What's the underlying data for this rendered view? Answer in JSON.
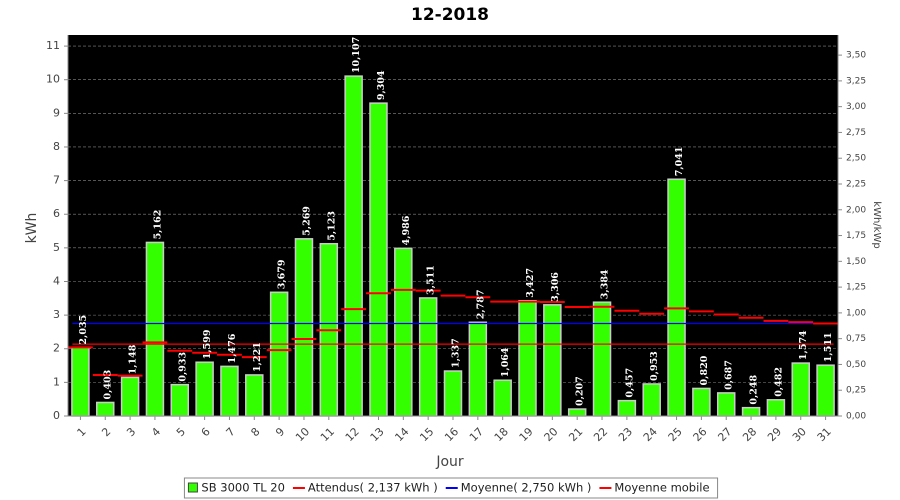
{
  "chart_data": {
    "type": "bar",
    "title": "12-2018",
    "x_label": "Jour",
    "y_label": "kWh",
    "y2_label": "kWh/kWp",
    "categories": [
      "1",
      "2",
      "3",
      "4",
      "5",
      "6",
      "7",
      "8",
      "9",
      "10",
      "11",
      "12",
      "13",
      "14",
      "15",
      "16",
      "17",
      "18",
      "19",
      "20",
      "21",
      "22",
      "23",
      "24",
      "25",
      "26",
      "27",
      "28",
      "29",
      "30",
      "31"
    ],
    "series": [
      {
        "name": "SB 3000 TL 20",
        "color": "#33ff00",
        "values": [
          2.035,
          0.403,
          1.148,
          5.162,
          0.933,
          1.599,
          1.476,
          1.221,
          3.679,
          5.269,
          5.123,
          10.107,
          9.304,
          4.986,
          3.511,
          1.337,
          2.787,
          1.064,
          3.427,
          3.306,
          0.207,
          3.384,
          0.457,
          0.953,
          7.041,
          0.82,
          0.687,
          0.248,
          0.482,
          1.574,
          1.511
        ],
        "value_labels": [
          "2,035",
          "0,403",
          "1,148",
          "5,162",
          "0,933",
          "1,599",
          "1,476",
          "1,221",
          "3,679",
          "5,269",
          "5,123",
          "10,107",
          "9,304",
          "4,986",
          "3,511",
          "1,337",
          "2,787",
          "1,064",
          "3,427",
          "3,306",
          "0,207",
          "3,384",
          "0,457",
          "0,953",
          "7,041",
          "0,820",
          "0,687",
          "0,248",
          "0,482",
          "1,574",
          "1,511"
        ]
      },
      {
        "name": "Moyenne mobile",
        "color": "#ff0000",
        "values": [
          2.04,
          1.22,
          1.2,
          2.19,
          1.94,
          1.88,
          1.82,
          1.75,
          1.96,
          2.29,
          2.55,
          3.18,
          3.65,
          3.75,
          3.73,
          3.58,
          3.53,
          3.4,
          3.4,
          3.39,
          3.24,
          3.25,
          3.13,
          3.04,
          3.2,
          3.11,
          3.02,
          2.92,
          2.83,
          2.79,
          2.75
        ]
      }
    ],
    "reference_lines": [
      {
        "name": "Attendus( 2,137 kWh )",
        "color": "#ff0000",
        "value": 2.137
      },
      {
        "name": "Moyenne( 2,750 kWh )",
        "color": "#0000ff",
        "value": 2.75
      }
    ],
    "ylim": [
      0,
      11.33
    ],
    "yticks": [
      0,
      1,
      2,
      3,
      4,
      5,
      6,
      7,
      8,
      9,
      10,
      11
    ],
    "y2lim": [
      0,
      3.695
    ],
    "y2ticks": [
      {
        "value": 0,
        "label": "0,00"
      },
      {
        "value": 0.25,
        "label": "0,25"
      },
      {
        "value": 0.5,
        "label": "0,50"
      },
      {
        "value": 0.75,
        "label": "0,75"
      },
      {
        "value": 1,
        "label": "1,00"
      },
      {
        "value": 1.25,
        "label": "1,25"
      },
      {
        "value": 1.5,
        "label": "1,50"
      },
      {
        "value": 1.75,
        "label": "1,75"
      },
      {
        "value": 2,
        "label": "2,00"
      },
      {
        "value": 2.25,
        "label": "2,25"
      },
      {
        "value": 2.5,
        "label": "2,50"
      },
      {
        "value": 2.75,
        "label": "2,75"
      },
      {
        "value": 3,
        "label": "3,00"
      },
      {
        "value": 3.25,
        "label": "3,25"
      },
      {
        "value": 3.5,
        "label": "3,50"
      }
    ],
    "grid": true
  }
}
